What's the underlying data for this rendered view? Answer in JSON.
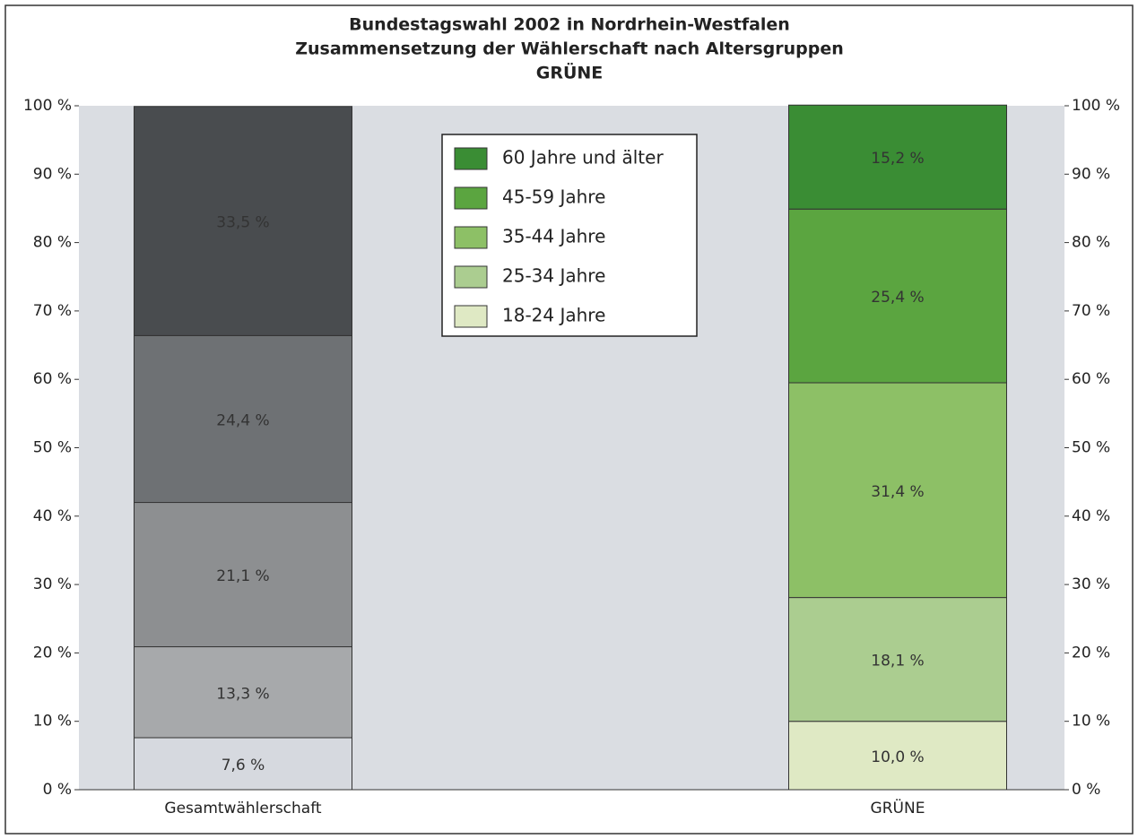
{
  "chart_data": {
    "type": "stacked_bar",
    "title": [
      "Bundestagswahl 2002 in Nordrhein-Westfalen",
      "Zusammensetzung der Wählerschaft nach Altersgruppen",
      "GRÜNE"
    ],
    "categories": [
      "Gesamtwählerschaft",
      "GRÜNE"
    ],
    "series": [
      {
        "name": "18-24 Jahre",
        "color": "#dfe9c4",
        "bar_colors": [
          "#d6d9df",
          "#dfe9c4"
        ],
        "values": [
          7.6,
          10.0
        ],
        "value_labels": [
          "7,6 %",
          "10,0 %"
        ]
      },
      {
        "name": "25-34 Jahre",
        "color": "#abcd90",
        "bar_colors": [
          "#a7a9ab",
          "#abcd90"
        ],
        "values": [
          13.3,
          18.1
        ],
        "value_labels": [
          "13,3 %",
          "18,1 %"
        ]
      },
      {
        "name": "35-44 Jahre",
        "color": "#8dc066",
        "bar_colors": [
          "#8d8f91",
          "#8dc066"
        ],
        "values": [
          21.1,
          31.4
        ],
        "value_labels": [
          "21,1 %",
          "31,4 %"
        ]
      },
      {
        "name": "45-59 Jahre",
        "color": "#5ba540",
        "bar_colors": [
          "#6e7174",
          "#5ba540"
        ],
        "values": [
          24.4,
          25.4
        ],
        "value_labels": [
          "24,4 %",
          "25,4 %"
        ]
      },
      {
        "name": "60 Jahre und älter",
        "color": "#3a8d34",
        "bar_colors": [
          "#494c4f",
          "#3a8d34"
        ],
        "values": [
          33.5,
          15.2
        ],
        "value_labels": [
          "33,5 %",
          "15,2 %"
        ]
      }
    ],
    "ylim": [
      0,
      100
    ],
    "yticks": [
      {
        "value": 0,
        "label": "0 %"
      },
      {
        "value": 10,
        "label": "10 %"
      },
      {
        "value": 20,
        "label": "20 %"
      },
      {
        "value": 30,
        "label": "30 %"
      },
      {
        "value": 40,
        "label": "40 %"
      },
      {
        "value": 50,
        "label": "50 %"
      },
      {
        "value": 60,
        "label": "60 %"
      },
      {
        "value": 70,
        "label": "70 %"
      },
      {
        "value": 80,
        "label": "80 %"
      },
      {
        "value": 90,
        "label": "90 %"
      },
      {
        "value": 100,
        "label": "100 %"
      }
    ],
    "y2lim": [
      0,
      100
    ],
    "y2ticks": [
      {
        "value": 0,
        "label": "0 %"
      },
      {
        "value": 10,
        "label": "10 %"
      },
      {
        "value": 20,
        "label": "20 %"
      },
      {
        "value": 30,
        "label": "30 %"
      },
      {
        "value": 40,
        "label": "40 %"
      },
      {
        "value": 50,
        "label": "50 %"
      },
      {
        "value": 60,
        "label": "60 %"
      },
      {
        "value": 70,
        "label": "70 %"
      },
      {
        "value": 80,
        "label": "80 %"
      },
      {
        "value": 90,
        "label": "90 %"
      },
      {
        "value": 100,
        "label": "100 %"
      }
    ],
    "legend": "top-center"
  }
}
